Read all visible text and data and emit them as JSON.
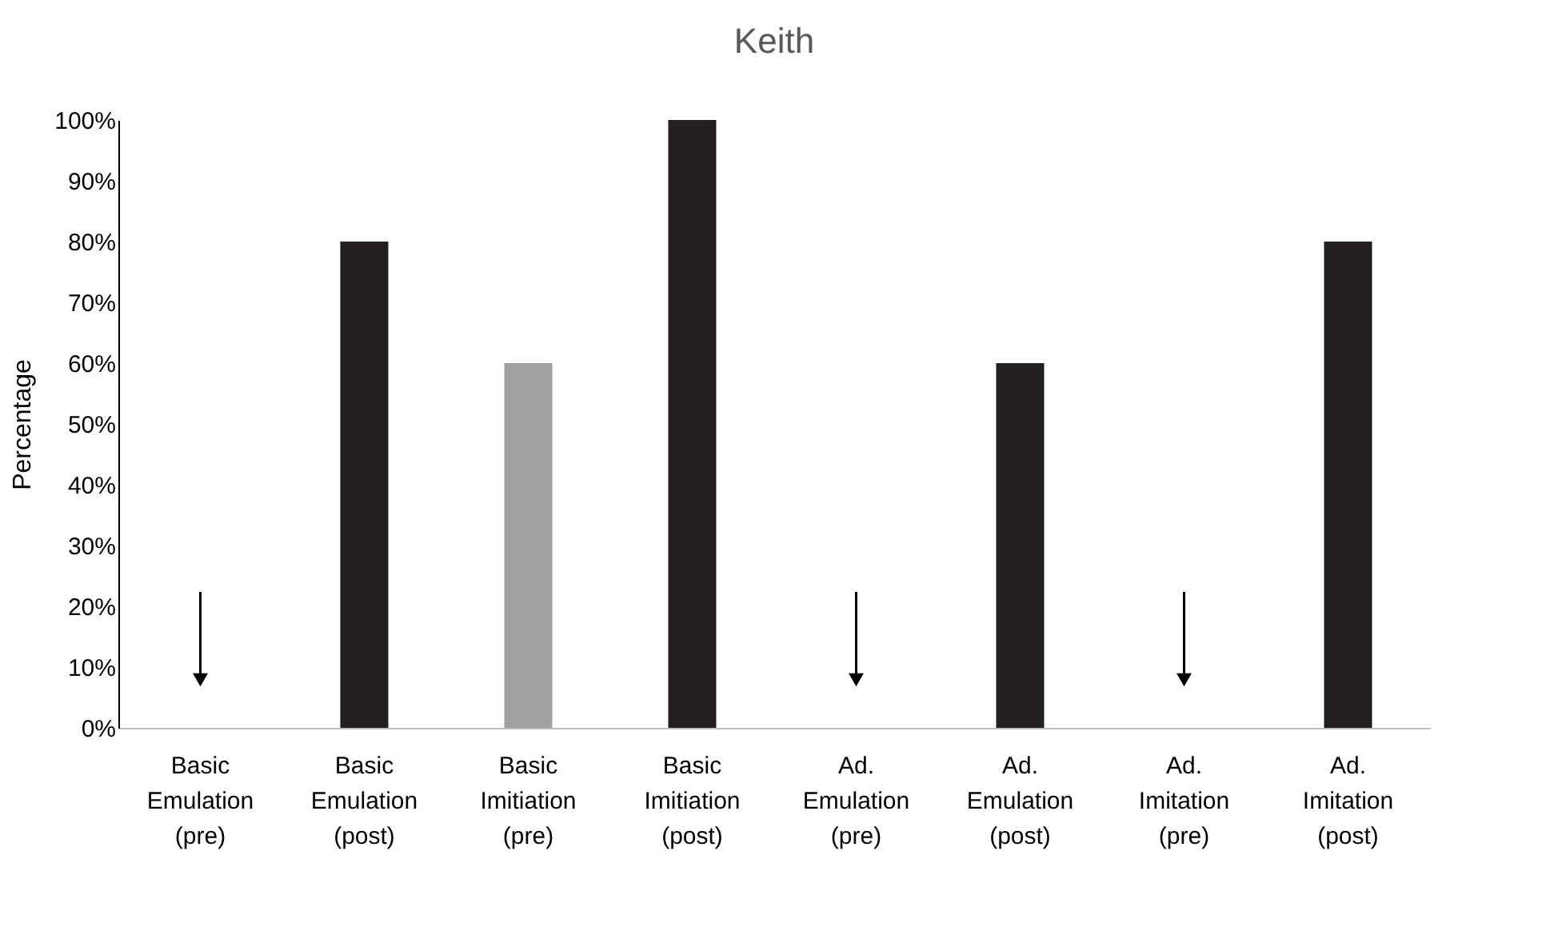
{
  "chart_data": {
    "type": "bar",
    "title": "Keith",
    "ylabel": "Percentage",
    "categories": [
      "Basic Emulation (pre)",
      "Basic Emulation (post)",
      "Basic Imitiation (pre)",
      "Basic Imitiation (post)",
      "Ad. Emulation (pre)",
      "Ad. Emulation (post)",
      "Ad. Imitation (pre)",
      "Ad. Imitation (post)"
    ],
    "values": [
      0,
      80,
      60,
      100,
      0,
      60,
      0,
      80
    ],
    "colors": [
      "#231f20",
      "#231f20",
      "#a0a0a0",
      "#231f20",
      "#231f20",
      "#231f20",
      "#231f20",
      "#231f20"
    ],
    "ylim": [
      0,
      100
    ],
    "yticks": [
      {
        "value": 0,
        "label": "0%"
      },
      {
        "value": 10,
        "label": "10%"
      },
      {
        "value": 20,
        "label": "20%"
      },
      {
        "value": 30,
        "label": "30%"
      },
      {
        "value": 40,
        "label": "40%"
      },
      {
        "value": 50,
        "label": "50%"
      },
      {
        "value": 60,
        "label": "60%"
      },
      {
        "value": 70,
        "label": "70%"
      },
      {
        "value": 80,
        "label": "80%"
      },
      {
        "value": 90,
        "label": "90%"
      },
      {
        "value": 100,
        "label": "100%"
      }
    ],
    "grid": false
  }
}
